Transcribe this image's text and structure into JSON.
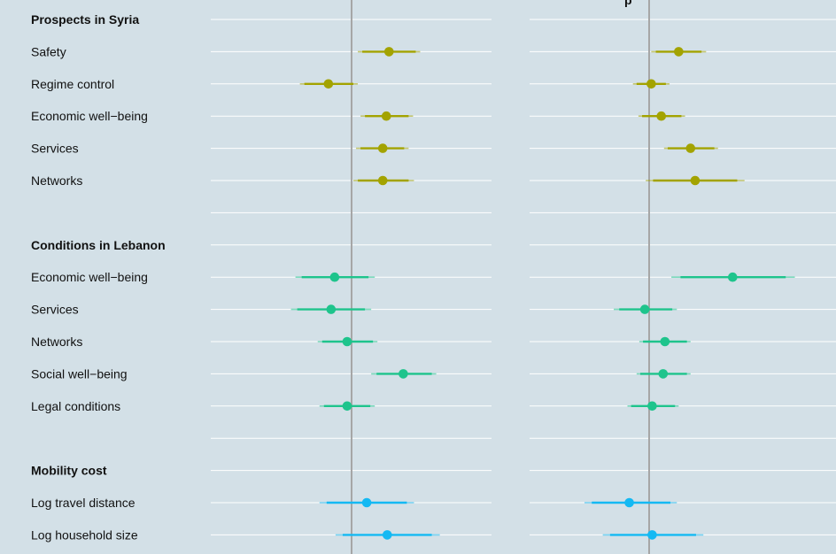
{
  "chart_data": {
    "type": "coefficient-plot",
    "title": "",
    "panels": [
      {
        "title": ""
      },
      {
        "title": "p"
      }
    ],
    "grid": true,
    "reference_line_x": 0,
    "rows": [
      {
        "label": "Prospects in Syria",
        "kind": "header",
        "group": ""
      },
      {
        "label": "Safety",
        "kind": "item",
        "group": "syria",
        "est": [
          0.4,
          0.28
        ],
        "ci95": [
          [
            0.05,
            0.75
          ],
          [
            -0.02,
            0.58
          ]
        ],
        "ci90": [
          [
            0.1,
            0.7
          ],
          [
            0.03,
            0.53
          ]
        ]
      },
      {
        "label": "Regime control",
        "kind": "item",
        "group": "syria",
        "est": [
          -0.28,
          -0.02
        ],
        "ci95": [
          [
            -0.6,
            0.05
          ],
          [
            -0.22,
            0.18
          ]
        ],
        "ci90": [
          [
            -0.55,
            0.0
          ],
          [
            -0.18,
            0.14
          ]
        ]
      },
      {
        "label": "Economic well−being",
        "kind": "item",
        "group": "syria",
        "est": [
          0.37,
          0.09
        ],
        "ci95": [
          [
            0.08,
            0.67
          ],
          [
            -0.16,
            0.35
          ]
        ],
        "ci90": [
          [
            0.13,
            0.62
          ],
          [
            -0.12,
            0.31
          ]
        ]
      },
      {
        "label": "Services",
        "kind": "item",
        "group": "syria",
        "est": [
          0.33,
          0.41
        ],
        "ci95": [
          [
            0.03,
            0.62
          ],
          [
            0.12,
            0.71
          ]
        ],
        "ci90": [
          [
            0.08,
            0.57
          ],
          [
            0.16,
            0.67
          ]
        ]
      },
      {
        "label": "Networks",
        "kind": "item",
        "group": "syria",
        "est": [
          0.33,
          0.46
        ],
        "ci95": [
          [
            0.0,
            0.68
          ],
          [
            -0.08,
            1.0
          ]
        ],
        "ci90": [
          [
            0.05,
            0.62
          ],
          [
            0.0,
            0.92
          ]
        ]
      },
      {
        "label": "",
        "kind": "spacer",
        "group": ""
      },
      {
        "label": "Conditions in Lebanon",
        "kind": "header",
        "group": ""
      },
      {
        "label": "Economic well−being",
        "kind": "item",
        "group": "lebanon",
        "est": [
          -0.21,
          0.87
        ],
        "ci95": [
          [
            -0.65,
            0.24
          ],
          [
            0.2,
            1.55
          ]
        ],
        "ci90": [
          [
            -0.58,
            0.17
          ],
          [
            0.3,
            1.45
          ]
        ]
      },
      {
        "label": "Services",
        "kind": "item",
        "group": "lebanon",
        "est": [
          -0.25,
          -0.09
        ],
        "ci95": [
          [
            -0.7,
            0.2
          ],
          [
            -0.43,
            0.26
          ]
        ],
        "ci90": [
          [
            -0.63,
            0.13
          ],
          [
            -0.37,
            0.21
          ]
        ]
      },
      {
        "label": "Networks",
        "kind": "item",
        "group": "lebanon",
        "est": [
          -0.07,
          0.13
        ],
        "ci95": [
          [
            -0.4,
            0.27
          ],
          [
            -0.15,
            0.41
          ]
        ],
        "ci90": [
          [
            -0.35,
            0.22
          ],
          [
            -0.11,
            0.37
          ]
        ]
      },
      {
        "label": "Social well−being",
        "kind": "item",
        "group": "lebanon",
        "est": [
          0.56,
          0.11
        ],
        "ci95": [
          [
            0.2,
            0.93
          ],
          [
            -0.18,
            0.41
          ]
        ],
        "ci90": [
          [
            0.26,
            0.88
          ],
          [
            -0.14,
            0.37
          ]
        ]
      },
      {
        "label": "Legal conditions",
        "kind": "item",
        "group": "lebanon",
        "est": [
          -0.07,
          -0.01
        ],
        "ci95": [
          [
            -0.38,
            0.24
          ],
          [
            -0.28,
            0.28
          ]
        ],
        "ci90": [
          [
            -0.33,
            0.19
          ],
          [
            -0.24,
            0.24
          ]
        ]
      },
      {
        "label": "",
        "kind": "spacer",
        "group": ""
      },
      {
        "label": "Mobility cost",
        "kind": "header",
        "group": ""
      },
      {
        "label": "Log travel distance",
        "kind": "item",
        "group": "mobility",
        "est": [
          0.15,
          -0.26
        ],
        "ci95": [
          [
            -0.38,
            0.68
          ],
          [
            -0.75,
            0.26
          ]
        ],
        "ci90": [
          [
            -0.3,
            0.6
          ],
          [
            -0.67,
            0.19
          ]
        ]
      },
      {
        "label": "Log household size",
        "kind": "item",
        "group": "mobility",
        "est": [
          0.38,
          -0.01
        ],
        "ci95": [
          [
            -0.2,
            0.97
          ],
          [
            -0.55,
            0.55
          ]
        ],
        "ci90": [
          [
            -0.12,
            0.88
          ],
          [
            -0.47,
            0.47
          ]
        ]
      }
    ],
    "xlim": [
      [
        -1.6,
        1.55
      ],
      [
        -1.35,
        2.0
      ]
    ],
    "colors": {
      "background": "#d3e0e7",
      "grid": "#ffffff",
      "zero_line": "#a6a6a6",
      "syria": "#a3a300",
      "lebanon": "#1ec48c",
      "mobility": "#14b9f3"
    }
  }
}
